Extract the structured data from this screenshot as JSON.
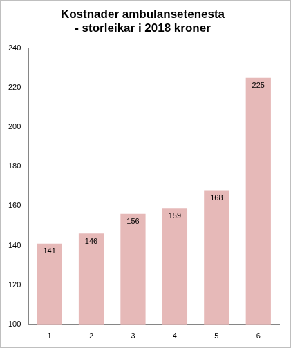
{
  "chart_data": {
    "type": "bar",
    "title": "Kostnader ambulansetenesta\n- storleikar i 2018 kroner",
    "categories": [
      "1",
      "2",
      "3",
      "4",
      "5",
      "6"
    ],
    "values": [
      141,
      146,
      156,
      159,
      168,
      225
    ],
    "color": "#e6b9b8",
    "ylim": [
      100,
      240
    ],
    "yticks": [
      100,
      120,
      140,
      160,
      180,
      200,
      220,
      240
    ],
    "grid": false,
    "data_labels": true
  }
}
